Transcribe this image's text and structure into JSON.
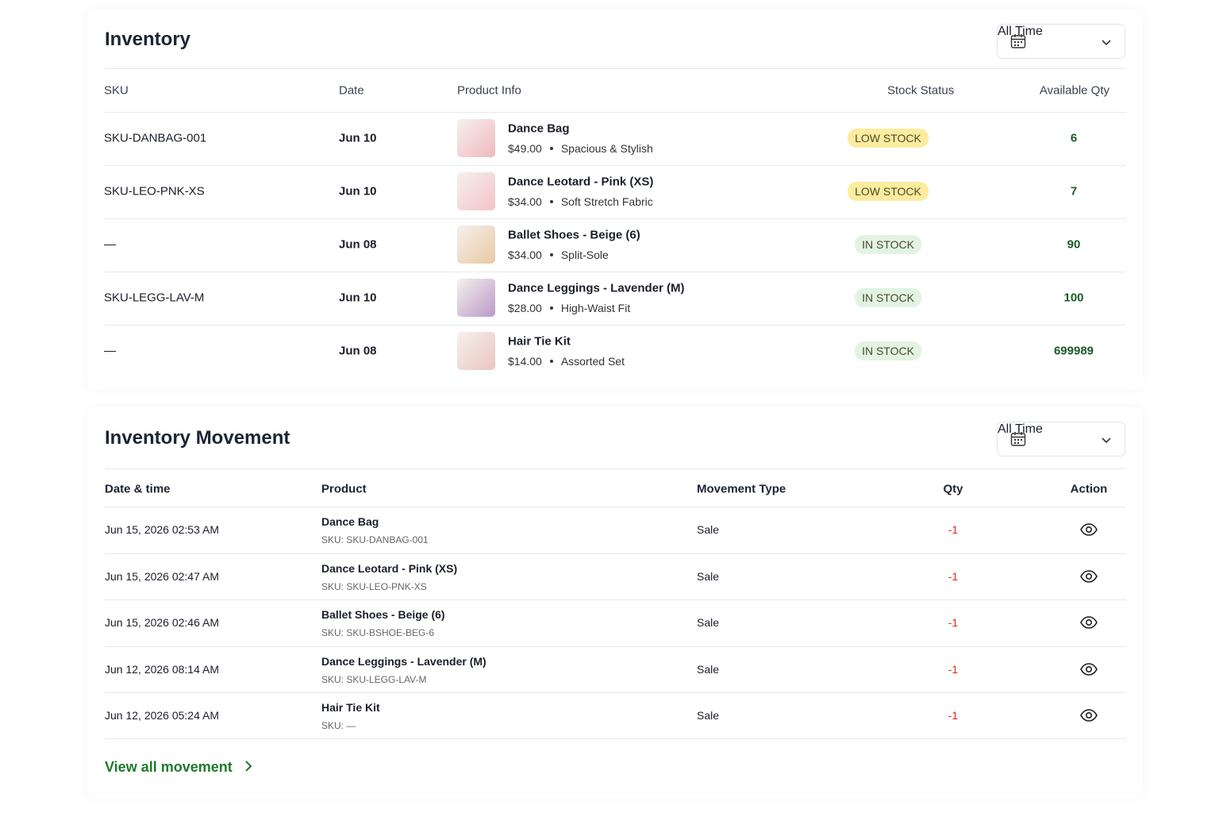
{
  "inventory": {
    "title": "Inventory",
    "filter": "All Time",
    "columns": [
      "SKU",
      "Date",
      "Product Info",
      "Stock Status",
      "Available Qty"
    ],
    "rows": [
      {
        "sku": "SKU-DANBAG-001",
        "date": "Jun 10",
        "name": "Dance Bag",
        "price": "$49.00",
        "desc": "Spacious & Stylish",
        "status": "LOW STOCK",
        "status_color": "#fcec9f",
        "qty": 6
      },
      {
        "sku": "SKU-LEO-PNK-XS",
        "date": "Jun 10",
        "name": "Dance Leotard - Pink (XS)",
        "price": "$34.00",
        "desc": "Soft Stretch Fabric",
        "status": "LOW STOCK",
        "status_color": "#fcec9f",
        "qty": 7
      },
      {
        "sku": "—",
        "date": "Jun 08",
        "name": "Ballet Shoes - Beige (6)",
        "price": "$34.00",
        "desc": "Split-Sole",
        "status": "IN STOCK",
        "status_color": "#e2f3e2",
        "qty": 90
      },
      {
        "sku": "SKU-LEGG-LAV-M",
        "date": "Jun 10",
        "name": "Dance Leggings - Lavender (M)",
        "price": "$28.00",
        "desc": "High-Waist Fit",
        "status": "IN STOCK",
        "status_color": "#e2f3e2",
        "qty": 100
      },
      {
        "sku": "—",
        "date": "Jun 08",
        "name": "Hair Tie Kit",
        "price": "$14.00",
        "desc": "Assorted Set",
        "status": "IN STOCK",
        "status_color": "#e2f3e2",
        "qty": 699989
      }
    ]
  },
  "movement": {
    "title": "Inventory Movement",
    "filter": "All Time",
    "columns": [
      "Date & time",
      "Product",
      "Movement Type",
      "Qty",
      "Action"
    ],
    "rows": [
      {
        "datetime": "Jun 15, 2026 02:53 AM",
        "product": "Dance Bag",
        "sku": "SKU: SKU-DANBAG-001",
        "type": "Sale",
        "qty": -1
      },
      {
        "datetime": "Jun 15, 2026 02:47 AM",
        "product": "Dance Leotard - Pink (XS)",
        "sku": "SKU: SKU-LEO-PNK-XS",
        "type": "Sale",
        "qty": -1
      },
      {
        "datetime": "Jun 15, 2026 02:46 AM",
        "product": "Ballet Shoes - Beige (6)",
        "sku": "SKU: SKU-BSHOE-BEG-6",
        "type": "Sale",
        "qty": -1
      },
      {
        "datetime": "Jun 12, 2026 08:14 AM",
        "product": "Dance Leggings - Lavender (M)",
        "sku": "SKU: SKU-LEGG-LAV-M",
        "type": "Sale",
        "qty": -1
      },
      {
        "datetime": "Jun 12, 2026 05:24 AM",
        "product": "Hair Tie Kit",
        "sku": "SKU: —",
        "type": "Sale",
        "qty": -1
      }
    ],
    "link": "View all movement"
  }
}
